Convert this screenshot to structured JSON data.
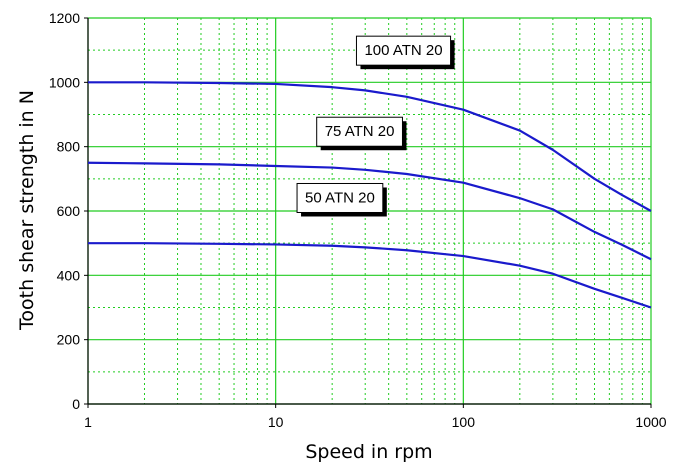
{
  "chart_data": {
    "type": "line",
    "title": "",
    "xlabel": "Speed in rpm",
    "ylabel": "Tooth shear strength in N",
    "xscale": "log",
    "xlim": [
      1,
      1000
    ],
    "ylim": [
      0,
      1200
    ],
    "x_ticks": [
      1,
      10,
      100,
      1000
    ],
    "x_tick_labels": [
      "1",
      "10",
      "100",
      "1000"
    ],
    "y_ticks": [
      0,
      200,
      400,
      600,
      800,
      1000,
      1200
    ],
    "y_tick_labels": [
      "0",
      "200",
      "400",
      "600",
      "800",
      "1000",
      "1200"
    ],
    "grid": true,
    "colors": {
      "major_grid": "#22cc22",
      "minor_grid": "#22cc22",
      "series": "#1a1acc",
      "axis": "#000000"
    },
    "series": [
      {
        "name": "100 ATN 20",
        "x": [
          1,
          2,
          5,
          10,
          20,
          30,
          50,
          100,
          200,
          300,
          500,
          700,
          1000
        ],
        "values": [
          1000,
          1000,
          998,
          995,
          985,
          975,
          955,
          915,
          850,
          790,
          700,
          650,
          600
        ]
      },
      {
        "name": "75 ATN 20",
        "x": [
          1,
          2,
          5,
          10,
          20,
          30,
          50,
          100,
          200,
          300,
          500,
          700,
          1000
        ],
        "values": [
          750,
          748,
          745,
          740,
          735,
          728,
          715,
          688,
          640,
          605,
          535,
          495,
          450
        ]
      },
      {
        "name": "50 ATN 20",
        "x": [
          1,
          2,
          5,
          10,
          20,
          30,
          50,
          100,
          200,
          300,
          500,
          700,
          1000
        ],
        "values": [
          500,
          500,
          498,
          496,
          492,
          487,
          478,
          460,
          430,
          405,
          358,
          330,
          300
        ]
      }
    ],
    "annotations": [
      {
        "text": "100 ATN 20",
        "x": 48,
        "y": 1100,
        "series": 0
      },
      {
        "text": "75 ATN 20",
        "x": 28,
        "y": 848,
        "series": 1
      },
      {
        "text": "50 ATN 20",
        "x": 22,
        "y": 642,
        "series": 2
      }
    ]
  }
}
